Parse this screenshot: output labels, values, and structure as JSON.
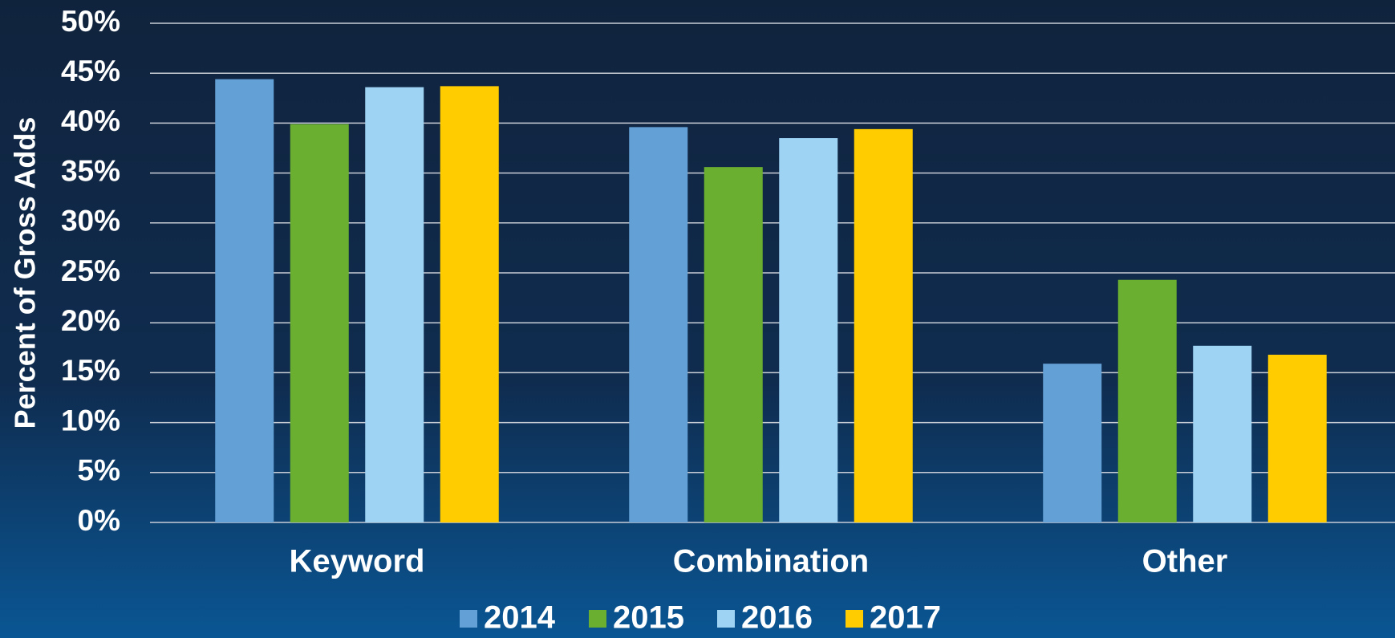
{
  "chart_data": {
    "type": "bar",
    "y_label": "Percent of Gross Adds",
    "categories": [
      "Keyword",
      "Combination",
      "Other"
    ],
    "series": [
      {
        "name": "2014",
        "color": "#63a0d6",
        "values": [
          44.4,
          39.6,
          15.9
        ]
      },
      {
        "name": "2015",
        "color": "#6aaf2f",
        "values": [
          39.9,
          35.6,
          24.3
        ]
      },
      {
        "name": "2016",
        "color": "#9ed3f4",
        "values": [
          43.6,
          38.5,
          17.7
        ]
      },
      {
        "name": "2017",
        "color": "#ffcc00",
        "values": [
          43.7,
          39.4,
          16.8
        ]
      }
    ],
    "ylim": [
      0,
      50
    ],
    "yticks": [
      {
        "value": 0,
        "label": "0%"
      },
      {
        "value": 5,
        "label": "5%"
      },
      {
        "value": 10,
        "label": "10%"
      },
      {
        "value": 15,
        "label": "15%"
      },
      {
        "value": 20,
        "label": "20%"
      },
      {
        "value": 25,
        "label": "25%"
      },
      {
        "value": 30,
        "label": "30%"
      },
      {
        "value": 35,
        "label": "35%"
      },
      {
        "value": 40,
        "label": "40%"
      },
      {
        "value": 45,
        "label": "45%"
      },
      {
        "value": 50,
        "label": "50%"
      }
    ],
    "grid": true,
    "legend": "bottom"
  }
}
